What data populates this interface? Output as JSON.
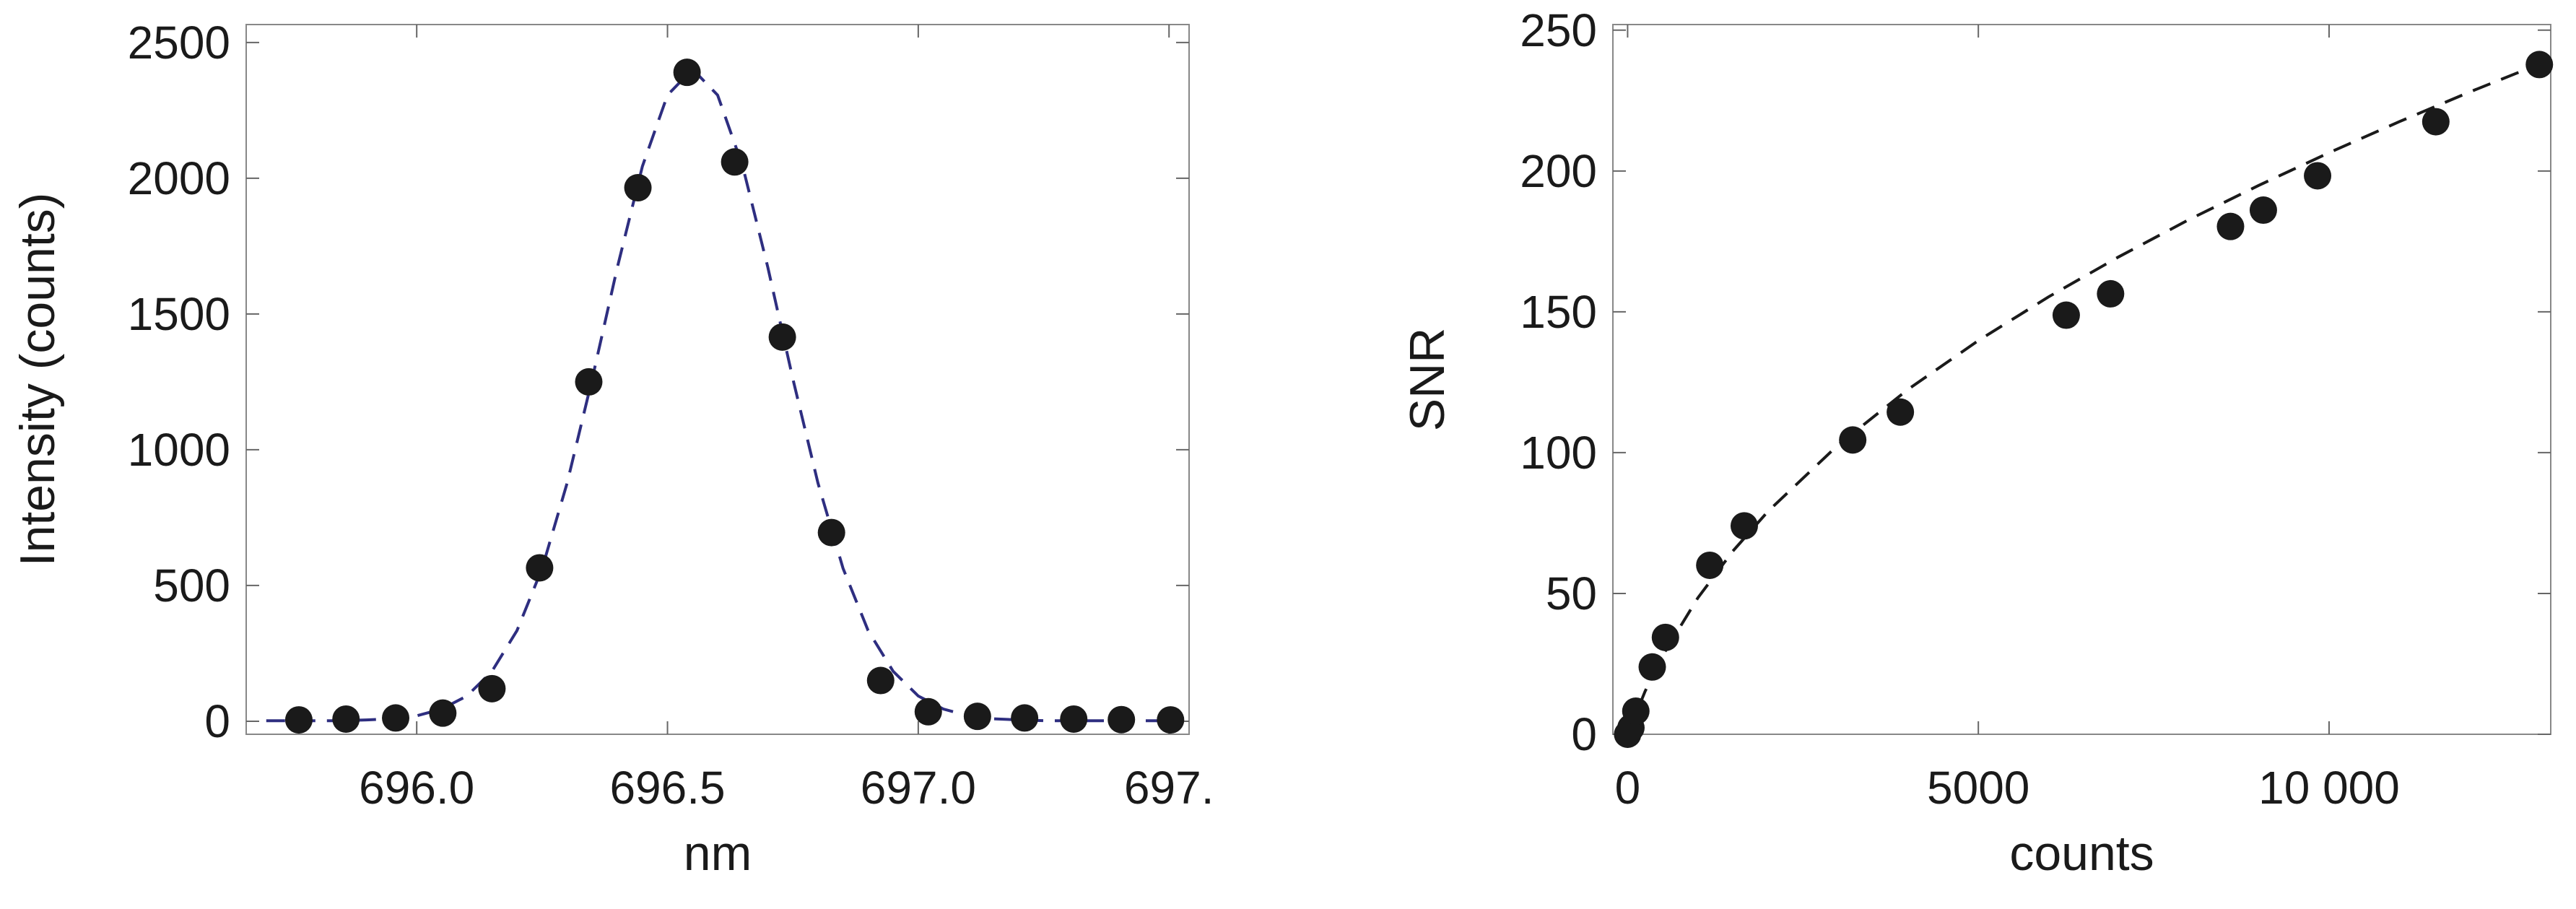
{
  "chart_data": [
    {
      "type": "scatter",
      "xlabel": "nm",
      "ylabel": "Intensity (counts)",
      "xlim": [
        695.66,
        697.54
      ],
      "ylim": [
        -48,
        2566
      ],
      "xticks": [
        {
          "value": 696,
          "label": "696.0"
        },
        696.5,
        {
          "value": 697,
          "label": "697.0"
        },
        {
          "value": 697.5,
          "label": "697."
        }
      ],
      "yticks": [
        0,
        500,
        1000,
        1500,
        2000,
        2500
      ],
      "series": [
        {
          "style": "markers",
          "color": "#1a1a1a",
          "x": [
            695.765,
            695.859,
            695.958,
            696.052,
            696.15,
            696.245,
            696.343,
            696.441,
            696.539,
            696.634,
            696.729,
            696.827,
            696.925,
            697.02,
            697.118,
            697.212,
            697.31,
            697.405,
            697.503
          ],
          "values": [
            5,
            8,
            12,
            30,
            120,
            565,
            1250,
            1965,
            2390,
            2060,
            1415,
            695,
            150,
            35,
            18,
            12,
            8,
            6,
            5
          ]
        },
        {
          "style": "dashed",
          "color": "#2e2e80",
          "x": [
            695.7,
            695.75,
            695.8,
            695.85,
            695.9,
            695.95,
            696.0,
            696.05,
            696.1,
            696.15,
            696.2,
            696.25,
            696.3,
            696.35,
            696.4,
            696.45,
            696.5,
            696.55,
            696.6,
            696.65,
            696.7,
            696.75,
            696.8,
            696.85,
            696.9,
            696.95,
            697.0,
            697.05,
            697.1,
            697.15,
            697.2,
            697.25,
            697.3,
            697.35,
            697.4,
            697.45,
            697.5
          ],
          "values": [
            2,
            2,
            2,
            2,
            5,
            9,
            20,
            45,
            93,
            184,
            334,
            563,
            878,
            1261,
            1672,
            2044,
            2306,
            2402,
            2306,
            2044,
            1672,
            1261,
            878,
            563,
            334,
            184,
            93,
            45,
            20,
            9,
            5,
            2,
            2,
            2,
            2,
            2,
            2
          ]
        }
      ]
    },
    {
      "type": "scatter",
      "xlabel": "counts",
      "ylabel": "SNR",
      "xlim": [
        -210,
        13160
      ],
      "ylim": [
        0,
        252
      ],
      "xticks": [
        0,
        5000,
        {
          "value": 10000,
          "label": "10 000"
        }
      ],
      "yticks": [
        0,
        50,
        100,
        150,
        200,
        250
      ],
      "series": [
        {
          "style": "markers",
          "color": "#1a1a1a",
          "x": [
            0,
            47,
            117,
            351,
            539,
            1171,
            1663,
            3209,
            3888,
            6253,
            6885,
            8595,
            9063,
            9836,
            11522,
            12998
          ],
          "values": [
            0,
            2.3,
            8.2,
            23.9,
            34.4,
            60,
            74,
            104.5,
            114.4,
            148.8,
            156.4,
            180.3,
            186.1,
            198.3,
            217.5,
            237.8
          ]
        },
        {
          "style": "dashed",
          "color": "#1a1a1a",
          "x": [
            0,
            250,
            500,
            1000,
            1500,
            2000,
            3000,
            4000,
            5000,
            6000,
            7000,
            8000,
            9000,
            10000,
            11000,
            12000,
            13000
          ],
          "values": [
            0,
            15.3,
            28,
            48.4,
            65,
            79.1,
            102.7,
            122.5,
            139.8,
            155.3,
            169.5,
            182.7,
            194.9,
            206.5,
            217.5,
            228,
            238
          ]
        }
      ]
    }
  ]
}
